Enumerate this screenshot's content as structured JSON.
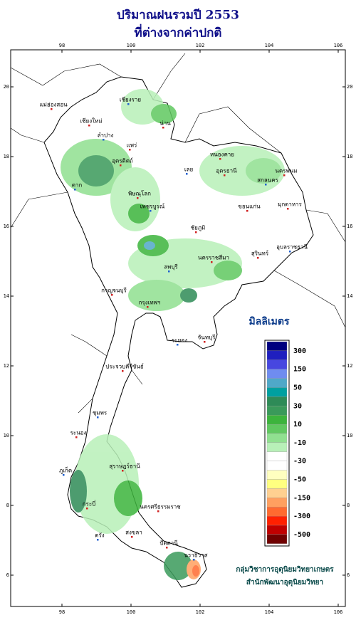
{
  "header": {
    "title": [
      "ปริมาณฝนรวมปี 2553",
      "ที่ต่างจากค่าปกติ"
    ]
  },
  "map": {
    "lon_ticks": [
      98,
      100,
      102,
      104,
      106
    ],
    "lat_ticks": [
      20,
      18,
      16,
      14,
      12,
      10,
      8,
      6
    ],
    "places": [
      "เชียงราย",
      "แม่ฮ่องสอน",
      "เชียงใหม่",
      "ลำปาง",
      "น่าน",
      "แพร่",
      "ตาก",
      "อุตรดิตถ์",
      "พิษณุโลก",
      "เพชรบูรณ์",
      "หนองคาย",
      "อุดรธานี",
      "สกลนคร",
      "นครพนม",
      "มุกดาหาร",
      "เลย",
      "ขอนแก่น",
      "ชัยภูมิ",
      "อุบลราชธานี",
      "สุรินทร์",
      "นครราชสีมา",
      "ลพบุรี",
      "กาญจนบุรี",
      "กรุงเทพฯ",
      "ระยอง",
      "จันทบุรี",
      "ประจวบคีรีขันธ์",
      "ชุมพร",
      "ระนอง",
      "สุราษฎร์ธานี",
      "ภูเก็ต",
      "นครศรีธรรมราช",
      "กระบี่",
      "ตรัง",
      "สงขลา",
      "ปัตตานี",
      "นราธิวาส"
    ]
  },
  "legend": {
    "title": "มิลลิเมตร",
    "colors": [
      "#00007f",
      "#1f1fbf",
      "#4747e0",
      "#6f8cf0",
      "#4fa8c8",
      "#00a0a0",
      "#2e8b57",
      "#3a9a5a",
      "#3cb43c",
      "#60c860",
      "#90e090",
      "#b8f0b8",
      "#ffffff",
      "#ffffff",
      "#ffffc0",
      "#ffff80",
      "#ffd090",
      "#ffa060",
      "#ff6a30",
      "#ff2000",
      "#c00000",
      "#700000"
    ],
    "labels": [
      300,
      150,
      50,
      30,
      10,
      -10,
      -30,
      -50,
      -150,
      -300,
      -500
    ]
  },
  "credits": [
    "กลุ่มวิชาการอุตุนิยมวิทยาเกษตร",
    "สำนักพัฒนาอุตุนิยมวิทยา"
  ]
}
